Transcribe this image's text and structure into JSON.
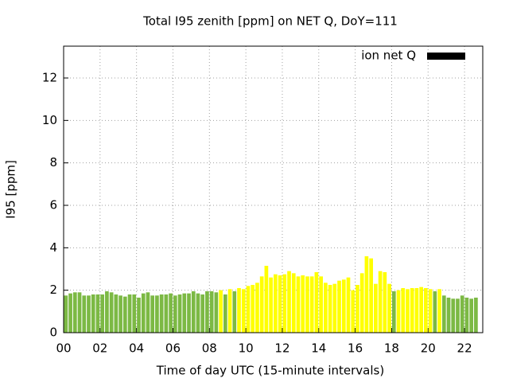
{
  "chart_data": {
    "type": "bar",
    "title": "Total I95 zenith [ppm] on NET Q, DoY=111",
    "xlabel": "Time of day UTC (15-minute intervals)",
    "ylabel": "I95 [ppm]",
    "xlim": [
      0,
      23
    ],
    "ylim": [
      0,
      13.5
    ],
    "xticks": [
      {
        "value": 0,
        "label": "00"
      },
      {
        "value": 2,
        "label": "02"
      },
      {
        "value": 4,
        "label": "04"
      },
      {
        "value": 6,
        "label": "06"
      },
      {
        "value": 8,
        "label": "08"
      },
      10,
      12,
      14,
      16,
      18,
      20,
      22
    ],
    "yticks": [
      0,
      2,
      4,
      6,
      8,
      10,
      12
    ],
    "grid": true,
    "legend": "top-right",
    "bar_width": 0.25,
    "x": [
      0,
      0.25,
      0.5,
      0.75,
      1,
      1.25,
      1.5,
      1.75,
      2,
      2.25,
      2.5,
      2.75,
      3,
      3.25,
      3.5,
      3.75,
      4,
      4.25,
      4.5,
      4.75,
      5,
      5.25,
      5.5,
      5.75,
      6,
      6.25,
      6.5,
      6.75,
      7,
      7.25,
      7.5,
      7.75,
      8,
      8.25,
      8.5,
      8.75,
      9,
      9.25,
      9.5,
      9.75,
      10,
      10.25,
      10.5,
      10.75,
      11,
      11.25,
      11.5,
      11.75,
      12,
      12.25,
      12.5,
      12.75,
      13,
      13.25,
      13.5,
      13.75,
      14,
      14.25,
      14.5,
      14.75,
      15,
      15.25,
      15.5,
      15.75,
      16,
      16.25,
      16.5,
      16.75,
      17,
      17.25,
      17.5,
      17.75,
      18,
      18.25,
      18.5,
      18.75,
      19,
      19.25,
      19.5,
      19.75,
      20,
      20.25,
      20.5,
      20.75,
      21,
      21.25,
      21.5,
      21.75,
      22,
      22.25,
      22.5
    ],
    "series": [
      {
        "name": "ion net Q",
        "color": "#000000",
        "values": [
          1.75,
          1.85,
          1.9,
          1.9,
          1.75,
          1.75,
          1.8,
          1.8,
          1.8,
          1.95,
          1.9,
          1.8,
          1.75,
          1.7,
          1.8,
          1.8,
          1.65,
          1.85,
          1.9,
          1.75,
          1.75,
          1.8,
          1.8,
          1.85,
          1.75,
          1.8,
          1.85,
          1.85,
          1.95,
          1.85,
          1.8,
          1.95,
          1.95,
          1.9,
          2.0,
          1.8,
          2.05,
          1.95,
          2.1,
          2.05,
          2.2,
          2.25,
          2.35,
          2.65,
          3.15,
          2.6,
          2.75,
          2.7,
          2.75,
          2.9,
          2.8,
          2.65,
          2.7,
          2.65,
          2.65,
          2.85,
          2.65,
          2.35,
          2.25,
          2.3,
          2.45,
          2.5,
          2.6,
          2.0,
          2.25,
          2.8,
          3.6,
          3.5,
          2.3,
          2.9,
          2.85,
          2.3,
          1.95,
          2.0,
          2.1,
          2.05,
          2.1,
          2.1,
          2.15,
          2.1,
          2.05,
          1.95,
          2.05,
          1.75,
          1.65,
          1.6,
          1.6,
          1.75,
          1.65,
          1.6,
          1.65
        ],
        "bar_colors": [
          "#7cb944",
          "#7cb944",
          "#7cb944",
          "#7cb944",
          "#7cb944",
          "#7cb944",
          "#7cb944",
          "#7cb944",
          "#7cb944",
          "#7cb944",
          "#7cb944",
          "#7cb944",
          "#7cb944",
          "#7cb944",
          "#7cb944",
          "#7cb944",
          "#7cb944",
          "#7cb944",
          "#7cb944",
          "#7cb944",
          "#7cb944",
          "#7cb944",
          "#7cb944",
          "#7cb944",
          "#7cb944",
          "#7cb944",
          "#7cb944",
          "#7cb944",
          "#7cb944",
          "#7cb944",
          "#7cb944",
          "#7cb944",
          "#7cb944",
          "#7cb944",
          "#ffff00",
          "#7cb944",
          "#ffff00",
          "#7cb944",
          "#ffff00",
          "#ffff00",
          "#ffff00",
          "#ffff00",
          "#ffff00",
          "#ffff00",
          "#ffff00",
          "#ffff00",
          "#ffff00",
          "#ffff00",
          "#ffff00",
          "#ffff00",
          "#ffff00",
          "#ffff00",
          "#ffff00",
          "#ffff00",
          "#ffff00",
          "#ffff00",
          "#ffff00",
          "#ffff00",
          "#ffff00",
          "#ffff00",
          "#ffff00",
          "#ffff00",
          "#ffff00",
          "#ffff00",
          "#ffff00",
          "#ffff00",
          "#ffff00",
          "#ffff00",
          "#ffff00",
          "#ffff00",
          "#ffff00",
          "#ffff00",
          "#7cb944",
          "#ffff00",
          "#ffff00",
          "#ffff00",
          "#ffff00",
          "#ffff00",
          "#ffff00",
          "#ffff00",
          "#ffff00",
          "#7cb944",
          "#ffff00",
          "#7cb944",
          "#7cb944",
          "#7cb944",
          "#7cb944",
          "#7cb944",
          "#7cb944",
          "#7cb944",
          "#7cb944"
        ]
      }
    ]
  }
}
